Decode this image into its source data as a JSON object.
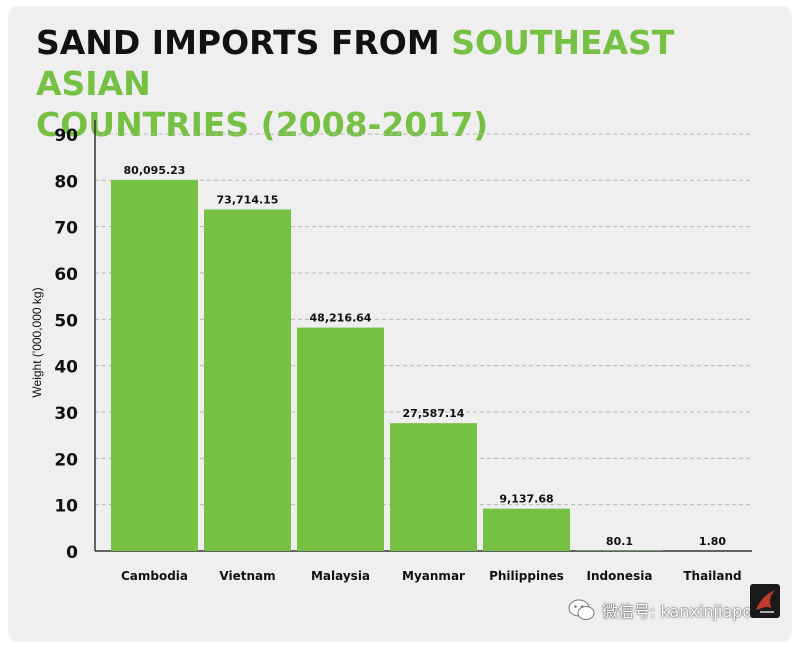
{
  "title_part1": "SAND IMPORTS FROM ",
  "title_part2": "SOUTHEAST ASIAN",
  "title_part3": "COUNTRIES (2008-2017)",
  "chart_data": {
    "type": "bar",
    "categories": [
      "Cambodia",
      "Vietnam",
      "Malaysia",
      "Myanmar",
      "Philippines",
      "Indonesia",
      "Thailand"
    ],
    "values": [
      80095.23,
      73714.15,
      48216.64,
      27587.14,
      9137.68,
      80.1,
      1.8
    ],
    "value_labels": [
      "80,095.23",
      "73,714.15",
      "48,216.64",
      "27,587.14",
      "9,137.68",
      "80.1",
      "1.80"
    ],
    "ylabel": "Weight ('000,000 kg)",
    "yticks": [
      "0",
      "10",
      "20",
      "30",
      "40",
      "50",
      "60",
      "70",
      "80",
      "90"
    ],
    "ylim": [
      0,
      90
    ],
    "y_unit_scale": 1000,
    "grid": true,
    "bar_color": "#76c043",
    "accent_color": "#76c043",
    "title_color": "#111111"
  },
  "watermark": {
    "text": "微信号: kanxinjiapo",
    "icon": "wechat-icon",
    "logo_icon": "phoenix-logo-icon"
  }
}
